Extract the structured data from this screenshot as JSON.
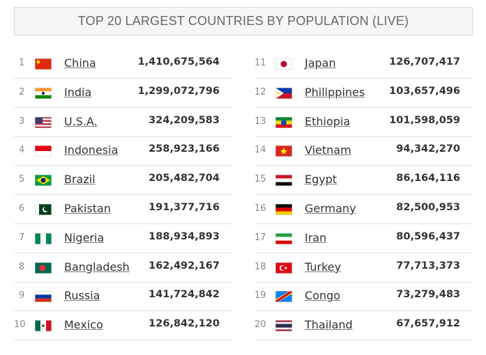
{
  "header": {
    "title": "TOP 20 LARGEST COUNTRIES BY POPULATION (LIVE)"
  },
  "table": {
    "rows": [
      [
        1,
        "China",
        "1,410,675,564"
      ],
      [
        2,
        "India",
        "1,299,072,796"
      ],
      [
        3,
        "U.S.A.",
        "324,209,583"
      ],
      [
        4,
        "Indonesia",
        "258,923,166"
      ],
      [
        5,
        "Brazil",
        "205,482,704"
      ],
      [
        6,
        "Pakistan",
        "191,377,716"
      ],
      [
        7,
        "Nigeria",
        "188,934,893"
      ],
      [
        8,
        "Bangladesh",
        "162,492,167"
      ],
      [
        9,
        "Russia",
        "141,724,842"
      ],
      [
        10,
        "Mexico",
        "126,842,120"
      ],
      [
        11,
        "Japan",
        "126,707,417"
      ],
      [
        12,
        "Philippines",
        "103,657,496"
      ],
      [
        13,
        "Ethiopia",
        "101,598,059"
      ],
      [
        14,
        "Vietnam",
        "94,342,270"
      ],
      [
        15,
        "Egypt",
        "86,164,116"
      ],
      [
        16,
        "Germany",
        "82,500,953"
      ],
      [
        17,
        "Iran",
        "80,596,437"
      ],
      [
        18,
        "Turkey",
        "77,713,373"
      ],
      [
        19,
        "Congo",
        "73,279,483"
      ],
      [
        20,
        "Thailand",
        "67,657,912"
      ]
    ]
  }
}
